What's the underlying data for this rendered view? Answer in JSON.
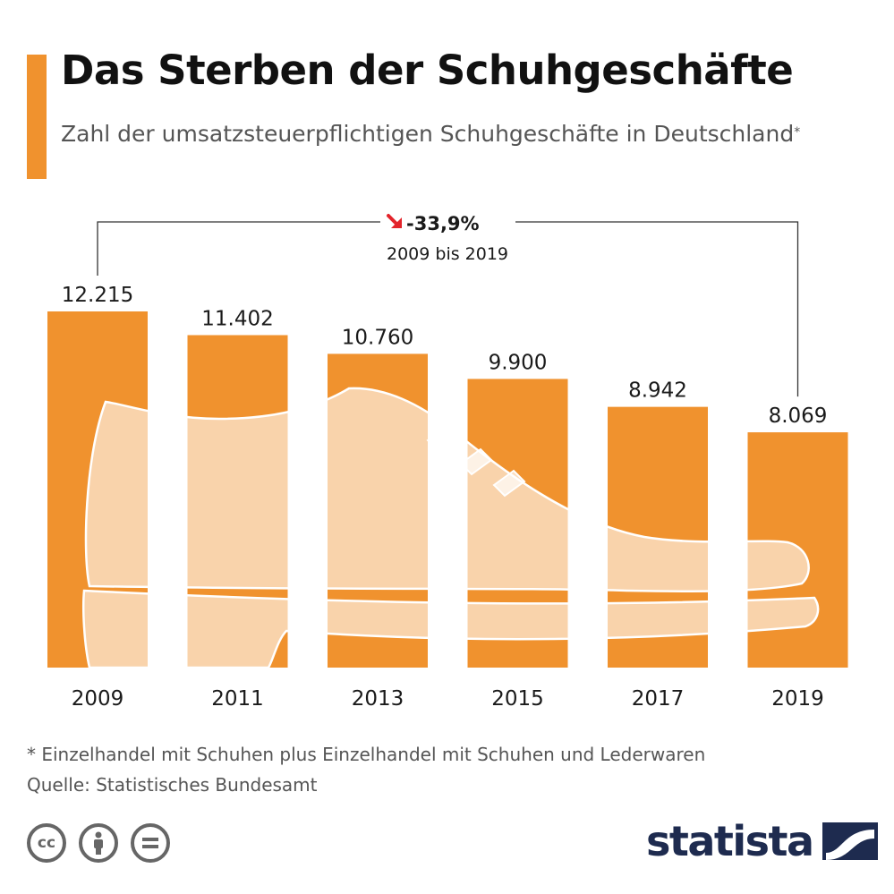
{
  "header": {
    "title": "Das Sterben der Schuhgeschäfte",
    "subtitle": "Zahl der umsatzsteuerpflichtigen Schuhgeschäfte in Deutschland",
    "subtitle_mark": "*"
  },
  "annotation": {
    "change": "-33,9%",
    "period": "2009 bis 2019",
    "arrow_color": "#e3242b"
  },
  "chart_data": {
    "type": "bar",
    "title": "Das Sterben der Schuhgeschäfte",
    "categories": [
      "2009",
      "2011",
      "2013",
      "2015",
      "2017",
      "2019"
    ],
    "values": [
      12215,
      11402,
      10760,
      9900,
      8942,
      8069
    ],
    "value_labels": [
      "12.215",
      "11.402",
      "10.760",
      "9.900",
      "8.942",
      "8.069"
    ],
    "ylim": [
      0,
      12215
    ],
    "grid": false,
    "legend": "none",
    "bar_color": "#f0922e"
  },
  "footer": {
    "footnote": "* Einzelhandel mit Schuhen plus Einzelhandel mit Schuhen und Lederwaren",
    "source": "Quelle: Statistisches Bundesamt",
    "license_icons": [
      "cc-icon",
      "person-icon",
      "equals-icon"
    ],
    "brand": "statista"
  },
  "colors": {
    "accent": "#f0922e",
    "brand": "#1e2b4f"
  }
}
